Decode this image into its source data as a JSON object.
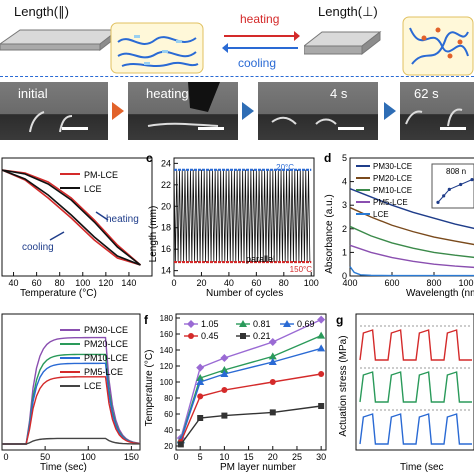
{
  "top": {
    "length_parallel": "Length(∥)",
    "length_perp": "Length(⊥)",
    "heating": "heating",
    "cooling": "cooling"
  },
  "photos": [
    {
      "caption": "initial"
    },
    {
      "caption": "heating"
    },
    {
      "caption": "4 s"
    },
    {
      "caption": "62 s"
    }
  ],
  "panel_b": {
    "xlabel": "Temperature (°C)",
    "xticks": [
      "40",
      "60",
      "80",
      "100",
      "120",
      "140"
    ],
    "legend": [
      "PM-LCE",
      "LCE"
    ],
    "heating": "heating",
    "cooling": "cooling",
    "colors": {
      "pm": "#d42a2a",
      "lce": "#111111"
    }
  },
  "panel_c": {
    "letter": "c",
    "xlabel": "Number of cycles",
    "ylabel": "Length (mm)",
    "yticks": [
      "14",
      "16",
      "18",
      "20",
      "22",
      "24"
    ],
    "xticks": [
      "0",
      "20",
      "40",
      "60",
      "80",
      "100"
    ],
    "label_20": "20°C",
    "label_150": "150°C",
    "parallel": "parallel"
  },
  "panel_d": {
    "letter": "d",
    "xlabel": "Wavelength (nm",
    "ylabel": "Absorbance (a.u.)",
    "yticks": [
      "0",
      "1",
      "2",
      "3",
      "4",
      "5"
    ],
    "xticks": [
      "400",
      "600",
      "800",
      "100"
    ],
    "legend": [
      "PM30-LCE",
      "PM20-LCE",
      "PM10-LCE",
      "PM5-LCE",
      "LCE"
    ],
    "inset_label": "808 n",
    "inset_ylabel": "Absorbance",
    "inset_xlabel": "PM laye",
    "inset_yticks": [
      "1.0",
      "1.5",
      "2.0"
    ],
    "inset_xticks": [
      "0",
      "10"
    ]
  },
  "panel_e": {
    "xlabel": "Time (sec)",
    "xticks": [
      "0",
      "50",
      "100",
      "150"
    ],
    "legend": [
      "PM30-LCE",
      "PM20-LCE",
      "PM10-LCE",
      "PM5-LCE",
      "LCE"
    ]
  },
  "panel_f": {
    "letter": "f",
    "xlabel": "PM layer number",
    "ylabel": "Temperature (°C)",
    "yticks": [
      "20",
      "40",
      "60",
      "80",
      "100",
      "120",
      "140",
      "160",
      "180"
    ],
    "xticks": [
      "0",
      "5",
      "10",
      "15",
      "20",
      "25",
      "30"
    ],
    "legend": [
      "1.05",
      "0.81",
      "0.69",
      "0.45",
      "0.21"
    ]
  },
  "panel_g": {
    "letter": "g",
    "xlabel": "Time (sec",
    "ylabel": "Actuation stress (MPa)"
  },
  "chart_data": [
    {
      "type": "line",
      "panel": "b",
      "xlabel": "Temperature (°C)",
      "xlim": [
        30,
        160
      ],
      "series": [
        {
          "name": "PM-LCE",
          "color": "#d42a2a",
          "heat_x": [
            30,
            50,
            70,
            90,
            110,
            130,
            150
          ],
          "heat_y": [
            1.0,
            0.97,
            0.88,
            0.72,
            0.5,
            0.25,
            0.05
          ],
          "cool_x": [
            150,
            130,
            110,
            90,
            70,
            50,
            30
          ],
          "cool_y": [
            0.05,
            0.12,
            0.3,
            0.52,
            0.72,
            0.9,
            1.0
          ]
        },
        {
          "name": "LCE",
          "color": "#111111",
          "heat_x": [
            30,
            50,
            70,
            90,
            110,
            130,
            150
          ],
          "heat_y": [
            1.0,
            0.96,
            0.86,
            0.7,
            0.48,
            0.23,
            0.05
          ],
          "cool_x": [
            150,
            130,
            110,
            90,
            70,
            50,
            30
          ],
          "cool_y": [
            0.05,
            0.14,
            0.33,
            0.55,
            0.75,
            0.91,
            1.0
          ]
        }
      ]
    },
    {
      "type": "line",
      "panel": "c",
      "title": "",
      "xlabel": "Number of cycles",
      "ylabel": "Length (mm)",
      "xlim": [
        0,
        102
      ],
      "ylim": [
        13.5,
        24.5
      ],
      "cycles": 50,
      "high": 23.4,
      "low": 14.8
    },
    {
      "type": "line",
      "panel": "d",
      "xlabel": "Wavelength (nm",
      "ylabel": "Absorbance (a.u.)",
      "xlim": [
        400,
        1000
      ],
      "ylim": [
        0,
        5
      ],
      "series": [
        {
          "name": "PM30-LCE",
          "color": "#1f3d8a",
          "x": [
            400,
            500,
            600,
            700,
            800,
            900,
            1000
          ],
          "y": [
            3.7,
            3.35,
            3.0,
            2.7,
            2.45,
            2.2,
            2.0
          ]
        },
        {
          "name": "PM20-LCE",
          "color": "#7a4a1c",
          "x": [
            400,
            500,
            600,
            700,
            800,
            900,
            1000
          ],
          "y": [
            2.9,
            2.5,
            2.15,
            1.88,
            1.65,
            1.48,
            1.32
          ]
        },
        {
          "name": "PM10-LCE",
          "color": "#3b8a4a",
          "x": [
            400,
            500,
            600,
            700,
            800,
            900,
            1000
          ],
          "y": [
            2.1,
            1.7,
            1.4,
            1.18,
            1.0,
            0.88,
            0.78
          ]
        },
        {
          "name": "PM5-LCE",
          "color": "#8a4fb0",
          "x": [
            400,
            500,
            600,
            700,
            800,
            900,
            1000
          ],
          "y": [
            1.3,
            1.0,
            0.78,
            0.62,
            0.5,
            0.42,
            0.36
          ]
        },
        {
          "name": "LCE",
          "color": "#2a7ad4",
          "x": [
            400,
            420,
            450,
            500,
            600,
            800,
            1000
          ],
          "y": [
            0.4,
            0.15,
            0.05,
            0.03,
            0.02,
            0.02,
            0.02
          ]
        }
      ],
      "inset": {
        "x": [
          0,
          5,
          10,
          20,
          30
        ],
        "y": [
          0.6,
          1.0,
          1.4,
          1.7,
          2.0
        ]
      }
    },
    {
      "type": "line",
      "panel": "e",
      "xlabel": "Time (sec)",
      "xlim": [
        0,
        160
      ],
      "series": [
        {
          "name": "PM30-LCE",
          "color": "#8a4fb0",
          "peak": 0.95
        },
        {
          "name": "PM20-LCE",
          "color": "#2a9a5a",
          "peak": 0.8
        },
        {
          "name": "PM10-LCE",
          "color": "#2a6ad4",
          "peak": 0.72
        },
        {
          "name": "PM5-LCE",
          "color": "#d42a2a",
          "peak": 0.6
        },
        {
          "name": "LCE",
          "color": "#444444",
          "peak": 0.05
        }
      ]
    },
    {
      "type": "line",
      "panel": "f",
      "xlabel": "PM layer number",
      "ylabel": "Temperature (°C)",
      "xlim": [
        0,
        31
      ],
      "ylim": [
        15,
        185
      ],
      "x": [
        1,
        5,
        10,
        20,
        30
      ],
      "series": [
        {
          "name": "1.05",
          "color": "#9a6ad4",
          "marker": "diamond",
          "y": [
            30,
            118,
            130,
            150,
            178
          ]
        },
        {
          "name": "0.81",
          "color": "#2a9a5a",
          "marker": "triangle",
          "y": [
            28,
            105,
            115,
            132,
            158
          ]
        },
        {
          "name": "0.69",
          "color": "#2a6ad4",
          "marker": "triangle",
          "y": [
            27,
            100,
            110,
            125,
            142
          ]
        },
        {
          "name": "0.45",
          "color": "#d42a2a",
          "marker": "circle",
          "y": [
            25,
            82,
            90,
            100,
            110
          ]
        },
        {
          "name": "0.21",
          "color": "#333333",
          "marker": "square",
          "y": [
            22,
            55,
            58,
            62,
            70
          ]
        }
      ]
    },
    {
      "type": "line",
      "panel": "g",
      "xlabel": "Time (sec",
      "ylabel": "Actuation stress (MPa)",
      "series": [
        {
          "color": "#d42a2a",
          "pulses": 4
        },
        {
          "color": "#2a9a5a",
          "pulses": 4
        },
        {
          "color": "#2a6ad4",
          "pulses": 4
        }
      ]
    }
  ]
}
